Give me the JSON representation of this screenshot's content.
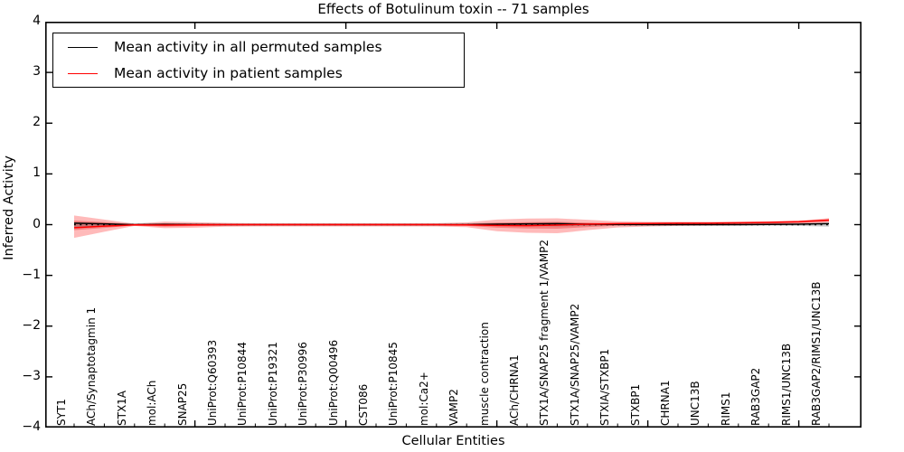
{
  "chart_data": {
    "type": "line",
    "title": "Effects of Botulinum toxin -- 71 samples",
    "xlabel": "Cellular Entities",
    "ylabel": "Inferred Activity",
    "ylim": [
      -4,
      4
    ],
    "grid": false,
    "legend_position": "upper left",
    "yticks": [
      4,
      3,
      2,
      1,
      0,
      -1,
      -2,
      -3,
      -4
    ],
    "ytick_labels": [
      "4",
      "3",
      "2",
      "1",
      "0",
      "−1",
      "−2",
      "−3",
      "−4"
    ],
    "major_x_tick_indices": [
      4,
      9,
      14,
      19,
      24
    ],
    "categories": [
      "SYT1",
      "ACh/Synaptotagmin 1",
      "STX1A",
      "mol:ACh",
      "SNAP25",
      "UniProt:Q60393",
      "UniProt:P10844",
      "UniProt:P19321",
      "UniProt:P30996",
      "UniProt:Q00496",
      "CST086",
      "UniProt:P10845",
      "mol:Ca2+",
      "VAMP2",
      "muscle contraction",
      "ACh/CHRNA1",
      "STX1A/SNAP25 fragment 1/VAMP2",
      "STX1A/SNAP25/VAMP2",
      "STXIA/STXBP1",
      "STXBP1",
      "CHRNA1",
      "UNC13B",
      "RIMS1",
      "RAB3GAP2",
      "RIMS1/UNC13B",
      "RAB3GAP2/RIMS1/UNC13B"
    ],
    "series": [
      {
        "name": "Mean activity in all permuted samples",
        "color": "#000000",
        "values": [
          0.03,
          0.015,
          0,
          0.005,
          0,
          0,
          0,
          0,
          0,
          0,
          0,
          0,
          0,
          0,
          0.01,
          0.015,
          0.02,
          0.01,
          0.005,
          0,
          0,
          0,
          0,
          0.005,
          0.01,
          0.02
        ]
      },
      {
        "name": "Mean activity in patient samples",
        "color": "#ff0000",
        "values": [
          -0.06,
          -0.03,
          -0.005,
          -0.01,
          -0.005,
          0,
          0,
          0,
          0,
          0,
          0,
          0,
          0,
          -0.005,
          -0.015,
          -0.02,
          -0.01,
          0.01,
          0.02,
          0.025,
          0.03,
          0.03,
          0.035,
          0.045,
          0.06,
          0.09
        ]
      }
    ],
    "bands": [
      {
        "name": "patient-outer-std",
        "color": "rgba(255,0,0,0.27)",
        "upper": [
          0.18,
          0.1,
          0.02,
          0.06,
          0.05,
          0.035,
          0.03,
          0.03,
          0.03,
          0.03,
          0.03,
          0.03,
          0.03,
          0.045,
          0.1,
          0.12,
          0.125,
          0.095,
          0.065,
          0.055,
          0.055,
          0.055,
          0.06,
          0.065,
          0.075,
          0.13
        ],
        "lower": [
          -0.26,
          -0.14,
          -0.025,
          -0.07,
          -0.06,
          -0.04,
          -0.035,
          -0.035,
          -0.035,
          -0.035,
          -0.035,
          -0.035,
          -0.035,
          -0.05,
          -0.13,
          -0.16,
          -0.17,
          -0.11,
          -0.055,
          -0.035,
          -0.025,
          -0.02,
          -0.015,
          -0.01,
          0.0,
          0.045
        ]
      },
      {
        "name": "patient-inner-std",
        "color": "rgba(230,0,0,0.3)",
        "upper": [
          0.08,
          0.05,
          0.01,
          0.03,
          0.025,
          0.018,
          0.015,
          0.015,
          0.015,
          0.015,
          0.015,
          0.015,
          0.015,
          0.02,
          0.04,
          0.05,
          0.055,
          0.04,
          0.03,
          0.03,
          0.035,
          0.035,
          0.04,
          0.045,
          0.055,
          0.11
        ],
        "lower": [
          -0.11,
          -0.065,
          -0.015,
          -0.04,
          -0.03,
          -0.02,
          -0.018,
          -0.018,
          -0.018,
          -0.018,
          -0.018,
          -0.018,
          -0.018,
          -0.025,
          -0.06,
          -0.075,
          -0.08,
          -0.05,
          -0.02,
          -0.01,
          0.0,
          0.005,
          0.01,
          0.015,
          0.03,
          0.065
        ]
      },
      {
        "name": "permuted-std",
        "color": "rgba(90,90,90,0.3)",
        "upper": [
          0.05,
          0.03,
          0.008,
          0.02,
          0.018,
          0.015,
          0.012,
          0.012,
          0.012,
          0.012,
          0.012,
          0.012,
          0.012,
          0.015,
          0.025,
          0.03,
          0.035,
          0.025,
          0.018,
          0.015,
          0.015,
          0.015,
          0.015,
          0.018,
          0.025,
          0.04
        ],
        "lower": [
          -0.05,
          -0.03,
          -0.008,
          -0.02,
          -0.018,
          -0.015,
          -0.012,
          -0.012,
          -0.012,
          -0.012,
          -0.012,
          -0.012,
          -0.012,
          -0.015,
          -0.025,
          -0.03,
          -0.035,
          -0.025,
          -0.018,
          -0.015,
          -0.015,
          -0.015,
          -0.015,
          -0.018,
          -0.025,
          -0.04
        ]
      }
    ],
    "zero_line": {
      "style": "dotted",
      "color": "#000000"
    }
  },
  "colors": {
    "frame": "#000000",
    "background": "#ffffff",
    "accent_red": "#ff0000"
  }
}
